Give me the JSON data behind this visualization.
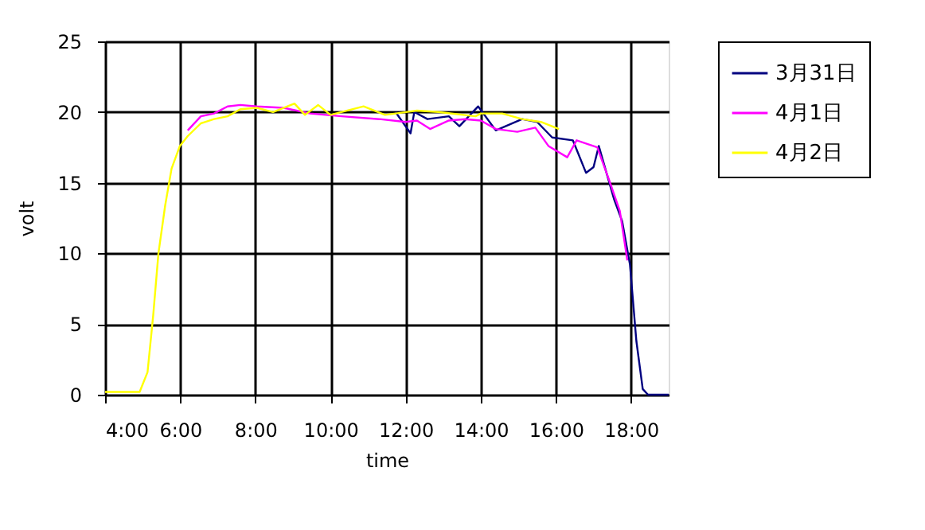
{
  "chart_data": {
    "type": "line",
    "xlabel": "time",
    "ylabel": "volt",
    "xlim": [
      4,
      19
    ],
    "ylim": [
      0,
      25
    ],
    "xticks": [
      {
        "value": 4,
        "label": "4:00"
      },
      {
        "value": 6,
        "label": "6:00"
      },
      {
        "value": 8,
        "label": "8:00"
      },
      {
        "value": 10,
        "label": "10:00"
      },
      {
        "value": 12,
        "label": "12:00"
      },
      {
        "value": 14,
        "label": "14:00"
      },
      {
        "value": 16,
        "label": "16:00"
      },
      {
        "value": 18,
        "label": "18:00"
      }
    ],
    "yticks": [
      0,
      5,
      10,
      15,
      20,
      25
    ],
    "grid": true,
    "legend": "right",
    "marker": "none",
    "line_style": "solid",
    "series": [
      {
        "name": "3月31日",
        "color": "#000080",
        "x": [
          11.73,
          12.13,
          12.23,
          12.58,
          13.15,
          13.43,
          13.93,
          14.4,
          15.1,
          15.5,
          15.9,
          16.45,
          16.8,
          17.0,
          17.14,
          17.55,
          17.76,
          17.97,
          18.14,
          18.31,
          18.45,
          18.86,
          19.0
        ],
        "values": [
          20.0,
          18.5,
          20.0,
          19.5,
          19.7,
          19.0,
          20.4,
          18.7,
          19.5,
          19.3,
          18.2,
          18.0,
          15.7,
          16.1,
          17.6,
          13.8,
          12.3,
          9.2,
          3.8,
          0.4,
          0.0,
          0.0,
          0.0
        ]
      },
      {
        "name": "4月1日",
        "color": "#ff00ff",
        "x": [
          6.2,
          6.55,
          6.9,
          7.26,
          7.6,
          8.04,
          8.75,
          9.46,
          10.3,
          11.3,
          12.0,
          12.3,
          12.65,
          13.15,
          13.58,
          14.0,
          14.4,
          14.97,
          15.45,
          15.8,
          16.3,
          16.55,
          17.1,
          17.4,
          17.7,
          17.9
        ],
        "values": [
          18.7,
          19.7,
          19.9,
          20.4,
          20.5,
          20.4,
          20.3,
          19.9,
          19.7,
          19.5,
          19.3,
          19.4,
          18.8,
          19.4,
          19.5,
          19.4,
          18.8,
          18.6,
          18.9,
          17.6,
          16.8,
          18.0,
          17.5,
          15.3,
          13.0,
          9.5
        ]
      },
      {
        "name": "4月2日",
        "color": "#ffff00",
        "x": [
          4.0,
          4.92,
          5.13,
          5.28,
          5.42,
          5.6,
          5.77,
          5.99,
          6.2,
          6.55,
          6.9,
          7.26,
          7.6,
          8.04,
          8.47,
          9.04,
          9.32,
          9.67,
          10.0,
          10.88,
          11.45,
          12.3,
          12.87,
          13.86,
          14.0,
          14.57,
          15.1,
          15.6,
          16.08
        ],
        "values": [
          0.2,
          0.2,
          1.6,
          5.6,
          10.0,
          13.4,
          16.0,
          17.6,
          18.3,
          19.2,
          19.5,
          19.7,
          20.2,
          20.3,
          20.0,
          20.6,
          19.8,
          20.5,
          19.8,
          20.4,
          19.8,
          20.1,
          20.0,
          19.7,
          19.9,
          19.9,
          19.5,
          19.3,
          18.8
        ]
      }
    ]
  }
}
